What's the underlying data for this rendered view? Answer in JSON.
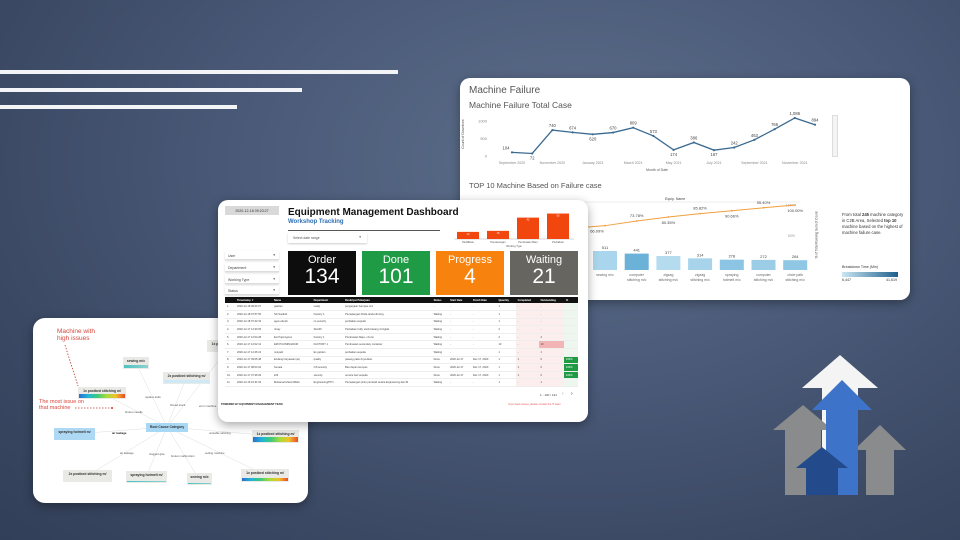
{
  "machine_failure": {
    "title": "Machine Failure",
    "line_title": "Machine Failure Total Case",
    "pareto_title": "TOP 10 Machine Based on Failure case",
    "chart_data": [
      {
        "type": "line",
        "title": "Machine Failure Total Case",
        "xlabel": "Month of Date",
        "ylabel": "Count of Downtime",
        "ylim": [
          0,
          1100
        ],
        "yticks": [
          "1000",
          "500",
          "0"
        ],
        "xtick_labels": [
          "September 2020",
          "November 2020",
          "January 2021",
          "March 2021",
          "May 2021",
          "July 2021",
          "September 2021",
          "November 2021"
        ],
        "x": [
          "Sep 2020",
          "Oct 2020",
          "Nov 2020",
          "Dec 2020",
          "Jan 2021",
          "Feb 2021",
          "Mar 2021",
          "Apr 2021",
          "May 2021",
          "Jun 2021",
          "Jul 2021",
          "Aug 2021",
          "Sep 2021",
          "Oct 2021",
          "Nov 2021",
          "Dec 2021"
        ],
        "values": [
          104,
          72,
          740,
          674,
          620,
          670,
          809,
          573,
          174,
          386,
          167,
          242,
          463,
          766,
          1086,
          894
        ],
        "labels": [
          "104",
          "72",
          "740",
          "674",
          "620",
          "670",
          "809",
          "573",
          "174",
          "386",
          "167",
          "242",
          "463",
          "766",
          "1,086",
          "894"
        ],
        "color": "#3b6a91"
      },
      {
        "type": "bar",
        "title": "TOP 10 Machine Based on Failure case",
        "header": "Equip. Name",
        "y2label": "% of Total Running Sum of Count",
        "y2ticks": [
          "100%",
          "50%",
          "0%"
        ],
        "categories": [
          "sewing m/c",
          "computer stitching m/c",
          "zigzag stitching m/c",
          "zigzag stitching m/c",
          "spraying hotmelt m/c",
          "computer stitching m/c",
          "circle path stitching m/c"
        ],
        "values": [
          511,
          441,
          377,
          314,
          278,
          272,
          264
        ],
        "bar_colors": [
          "#a9d6ec",
          "#6cb2d8",
          "#b5dcee",
          "#a7d4eb",
          "#8cc5e3",
          "#9bcde7",
          "#8fc7e4"
        ],
        "pareto": [
          66.09,
          73.78,
          80.35,
          85.82,
          90.66,
          95.4,
          100.0
        ],
        "pareto_labels": [
          "66.09%",
          "73.78%",
          "80.35%",
          "85.82%",
          "90.66%",
          "95.40%",
          "100.00%"
        ],
        "pareto_color": "#f0a040"
      }
    ],
    "note": {
      "p1": "From total ",
      "b1": "245",
      "p2": " machine category in C2B Area, Selected ",
      "b2": "top 10",
      "p3": " machine based on the highest of machine failure case."
    },
    "legend": {
      "title": "Breakdown Time (Min)",
      "min": "6,447",
      "max": "41,619"
    }
  },
  "dashboard": {
    "timestamp": "2020-12-18 09:23:27",
    "title": "Equipment Management Dashboard",
    "subtitle": "Workshop Tracking",
    "date_range_placeholder": "Select date range",
    "filters": [
      "User",
      "Department",
      "Working Type",
      "Status"
    ],
    "kpis": [
      {
        "label": "Order",
        "value": "134",
        "color": "#0d0d0d"
      },
      {
        "label": "Done",
        "value": "101",
        "color": "#1f9a45"
      },
      {
        "label": "Progress",
        "value": "4",
        "color": "#f7820d"
      },
      {
        "label": "Waiting",
        "value": "21",
        "color": "#666560"
      }
    ],
    "mini_chart": {
      "type": "bar",
      "xlabel": "Working Type",
      "categories": [
        "Modifikasi",
        "Pemasangan",
        "Pembuatan Baru",
        "Perbaikan"
      ],
      "values": [
        14,
        16,
        42,
        50
      ],
      "color": "#f2460f"
    },
    "table": {
      "columns": [
        "",
        "Timestamp ▼",
        "Name",
        "Department",
        "Deskripsi Pekerjaan",
        "Status",
        "Start Date",
        "Finish Date",
        "Quantity",
        "Completed",
        "Outstanding",
        "%"
      ],
      "rows": [
        [
          "1.",
          "2020-12-18 09:23:27",
          "gashan",
          "ready",
          "pengerjaan hampas rem",
          "-",
          "-",
          "-",
          "1",
          "-",
          "-",
          "-"
        ],
        [
          "2.",
          "2020-12-18 07:57:50",
          "Siti Soefiah",
          "Factory 1",
          "Pemasangan Roda tanda dinning",
          "Waiting",
          "-",
          "-",
          "1",
          "-",
          "-",
          "-"
        ],
        [
          "3.",
          "2020-12-18 07:42:19",
          "agus efendi",
          "ce security",
          "perbaikan sepeda",
          "Waiting",
          "-",
          "-",
          "1",
          "-",
          "-",
          "-"
        ],
        [
          "4.",
          "2020-12-17 14:30:06",
          "rimay",
          "Skorlift",
          "Perbaikan trolly stock barang 4 tingkat",
          "Waiting",
          "-",
          "-",
          "2",
          "-",
          "-",
          "-"
        ],
        [
          "5.",
          "2020-12-17 12:04:28",
          "Eni Pujiningrum",
          "Factory 1",
          "Pembuatan Meja + Kursi",
          "Waiting",
          "-",
          "-",
          "2",
          "-",
          "2",
          "-"
        ],
        [
          "6.",
          "2020-12-17 12:02:12",
          "EMI PUJINIINGRUM",
          "FACTORY 1",
          "Pembuatan secondary container",
          "Waiting",
          "-",
          "-",
          "10",
          "-",
          "10",
          "-"
        ],
        [
          "7.",
          "2020-12-17 12:46:13",
          "mulyadi",
          "Ex garden",
          "perbaikan sepeda",
          "Waiting",
          "-",
          "-",
          "1",
          "-",
          "1",
          "-"
        ],
        [
          "8.",
          "2020-12-17 09:05:48",
          "Endang haryawati (an)",
          "quality",
          "pasang paku di jendela",
          "Done",
          "2020-12-17",
          "Dec 17, 2020",
          "1",
          "1",
          "0",
          "100%"
        ],
        [
          "9.",
          "2020-12-17 08:04:04",
          "Sunata",
          "OS security",
          "Ban depan kempes",
          "Done",
          "2020-12-17",
          "Dec 17, 2020",
          "1",
          "1",
          "0",
          "100%"
        ],
        [
          "10.",
          "2020-12-17 07:36:09",
          "luffi",
          "security",
          "service ban sepeda",
          "Done",
          "2020-12-17",
          "Dec 17, 2020",
          "1",
          "1",
          "0",
          "100%"
        ],
        [
          "11.",
          "2020-12-16 16:31:03",
          "Muhamad Zaini Miftah",
          "Engineering/PTO",
          "Pemasangan pintu pemisah antara Engineering dan IR",
          "Waiting",
          "-",
          "-",
          "1",
          "-",
          "1",
          "-"
        ]
      ],
      "pager": "1 - 100 / 134"
    },
    "footer": "POWERED BY EQUIPMENT MANAGEMENT TEAM",
    "footer_note": "If you have issues, please contact the IT team"
  },
  "mindmap": {
    "annot_high": "Machine with high issues",
    "annot_most": "The most issue on that machine",
    "root": "Root Cause Category",
    "nodes": [
      "sewing m/c",
      "1x postbed stitching m/",
      "2x postbed stitching m/",
      "1x postbed stitching m/",
      "spraying hotmelt m/",
      "1x postbed stitching m/",
      "2x postbed stitching m/",
      "spraying hotmelt m/",
      "sewing m/c",
      "1x postbed stitching m/"
    ],
    "edges": [
      "replace knife",
      "thread stuck",
      "error machine",
      "broken needle",
      "air leakage",
      "unstable stitching",
      "air leakage",
      "clogged glue",
      "broken malfunction",
      "setting machine"
    ]
  }
}
